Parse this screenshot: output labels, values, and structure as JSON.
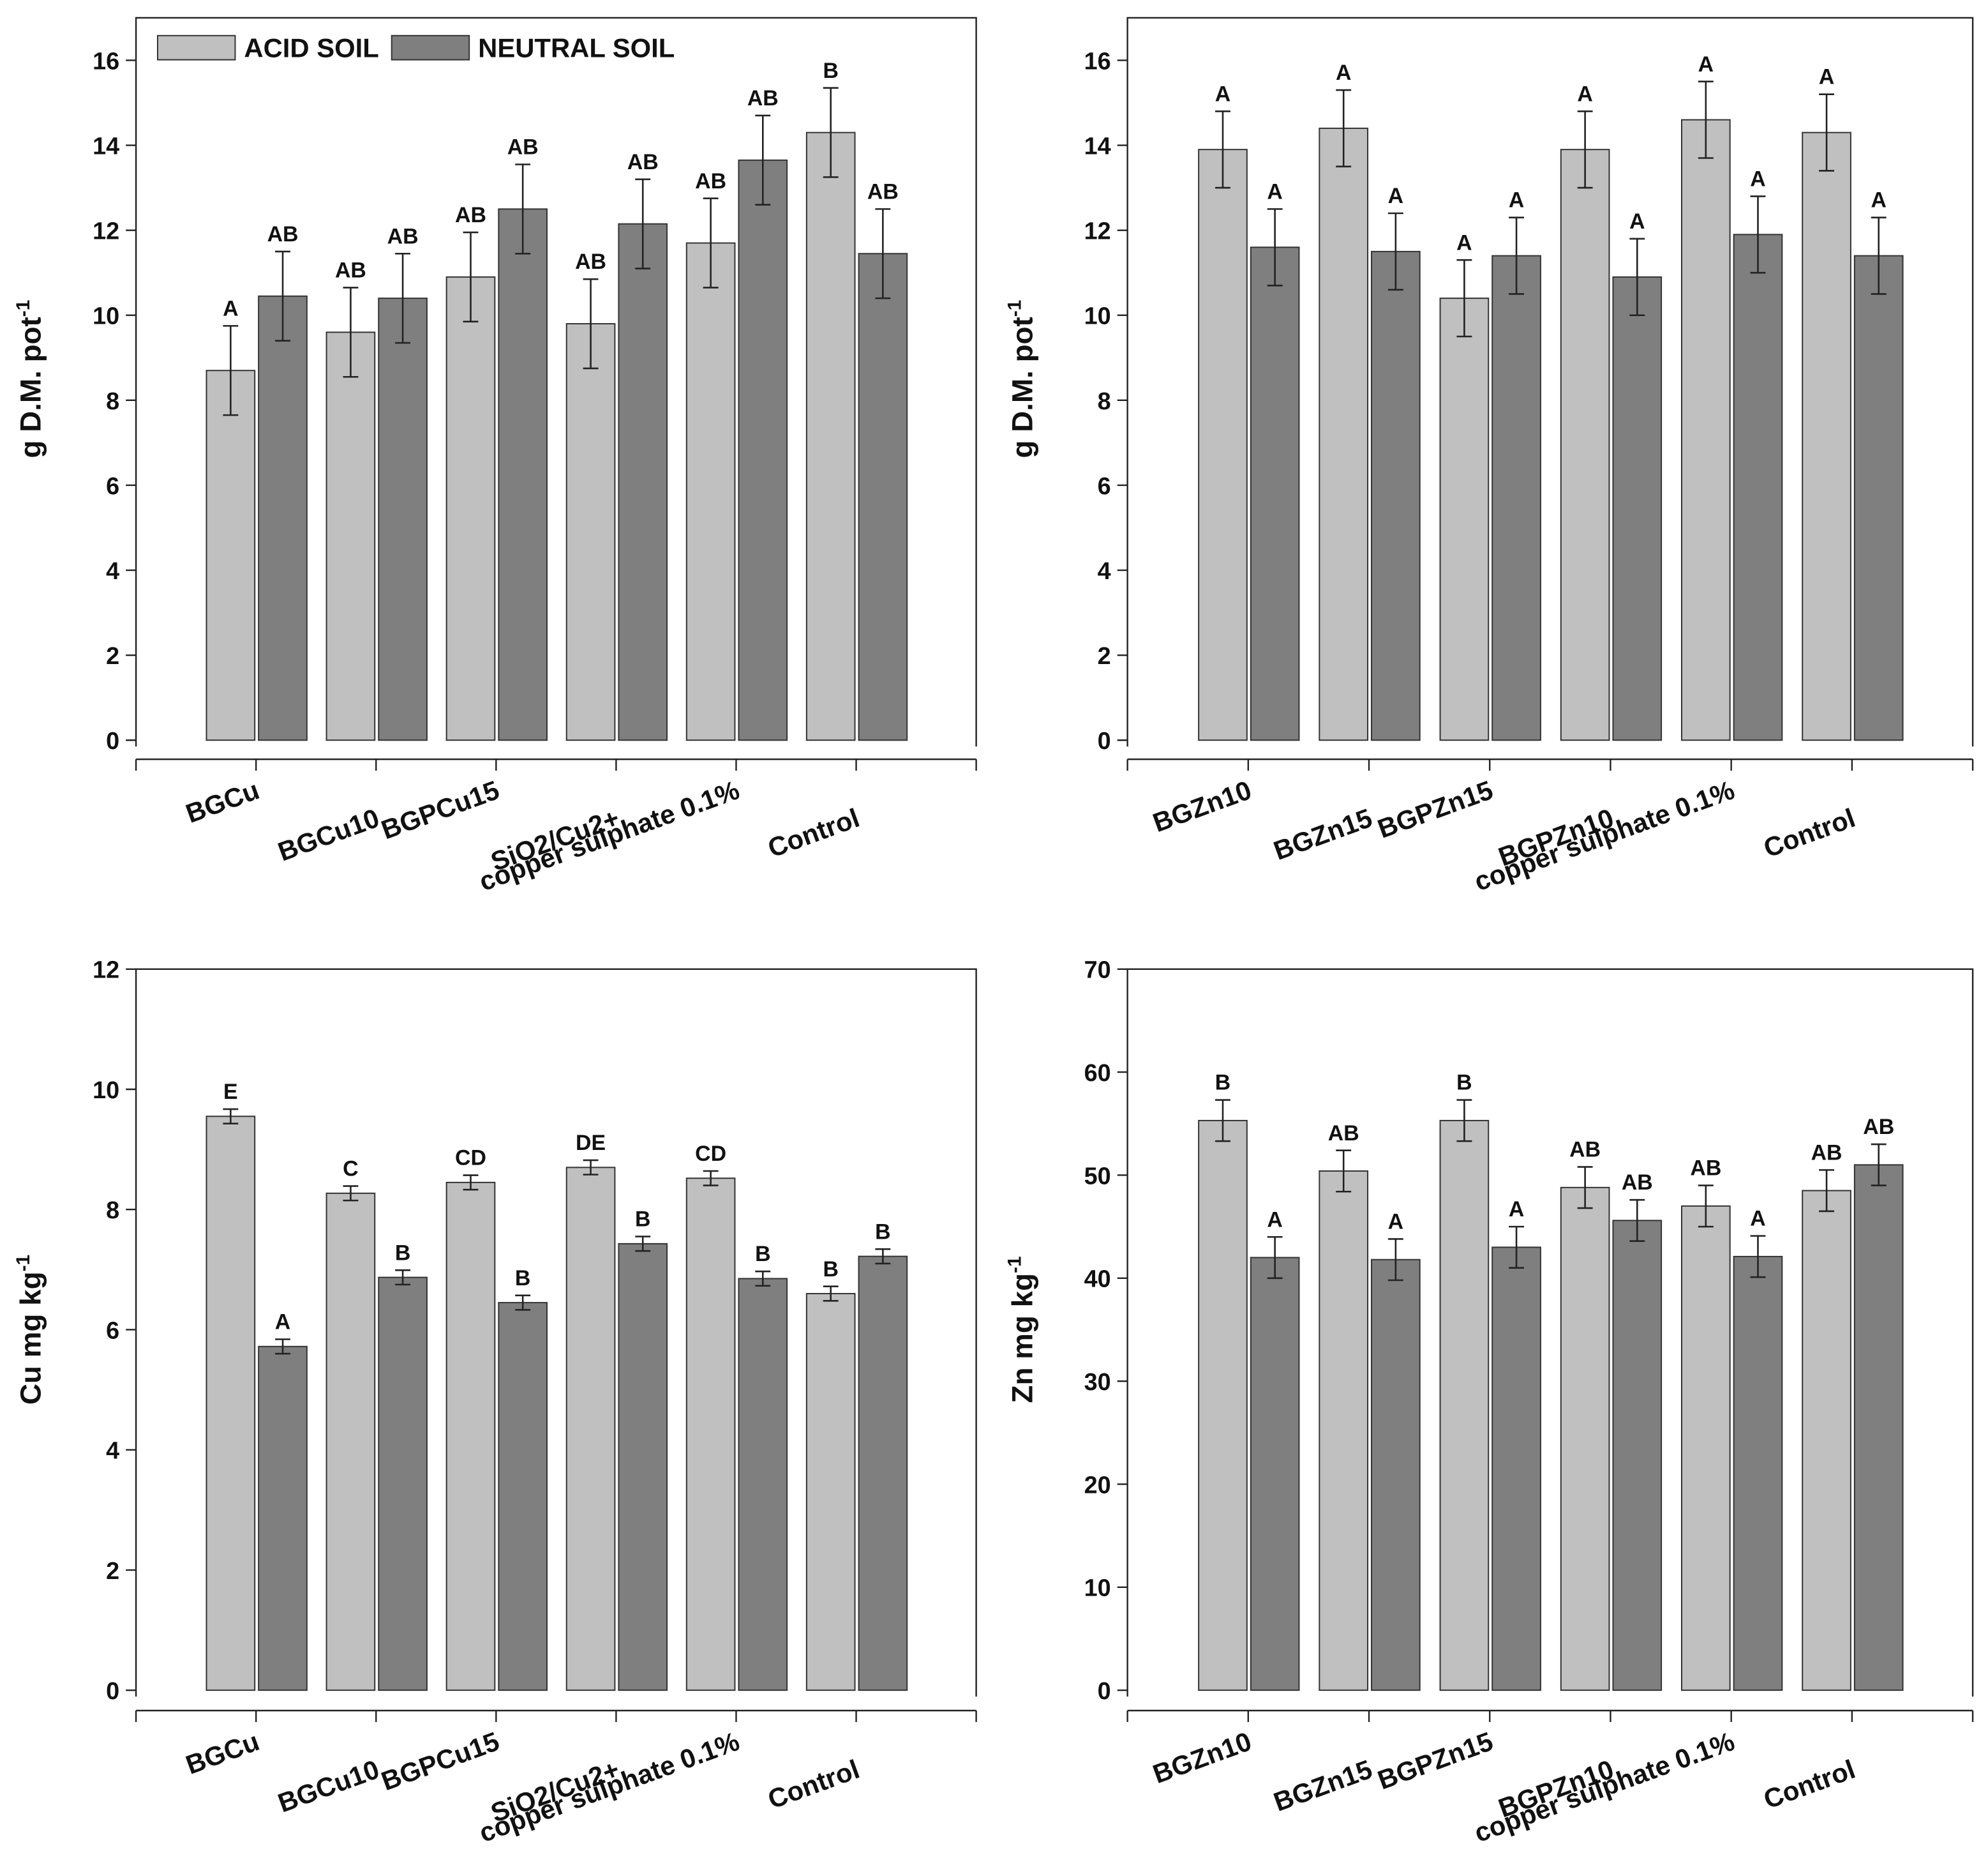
{
  "chart_data": [
    {
      "type": "bar",
      "ylabel": "g D.M. pot",
      "ylabel_sup": "-1",
      "legend": "upper left",
      "categories": [
        "BGCu",
        "BGCu10",
        "BGPCu15",
        "SiO2/Cu2+",
        "copper sulphate 0.1%",
        "Control"
      ],
      "series": [
        {
          "name": "ACID SOIL",
          "color": "#c0c0c0",
          "values": [
            8.7,
            9.6,
            10.9,
            9.8,
            11.7,
            14.3
          ],
          "errors": [
            1.05,
            1.05,
            1.05,
            1.05,
            1.05,
            1.05
          ],
          "labels": [
            "A",
            "AB",
            "AB",
            "AB",
            "AB",
            "B"
          ]
        },
        {
          "name": "NEUTRAL SOIL",
          "color": "#7f7f7f",
          "values": [
            10.45,
            10.4,
            12.5,
            12.15,
            13.65,
            11.45
          ],
          "errors": [
            1.05,
            1.05,
            1.05,
            1.05,
            1.05,
            1.05
          ],
          "labels": [
            "AB",
            "AB",
            "AB",
            "AB",
            "AB",
            "AB"
          ]
        }
      ],
      "ylim": [
        0,
        17
      ],
      "yticks": [
        0,
        2,
        4,
        6,
        8,
        10,
        12,
        14,
        16
      ]
    },
    {
      "type": "bar",
      "ylabel": "g D.M. pot",
      "ylabel_sup": "-1",
      "categories": [
        "BGZn10",
        "BGZn15",
        "BGPZn15",
        "BGPZn10",
        "copper sulphate 0.1%",
        "Control"
      ],
      "series": [
        {
          "color": "#c0c0c0",
          "values": [
            13.9,
            14.4,
            10.4,
            13.9,
            14.6,
            14.3
          ],
          "errors": [
            0.9,
            0.9,
            0.9,
            0.9,
            0.9,
            0.9
          ],
          "labels": [
            "A",
            "A",
            "A",
            "A",
            "A",
            "A"
          ]
        },
        {
          "color": "#7f7f7f",
          "values": [
            11.6,
            11.5,
            11.4,
            10.9,
            11.9,
            11.4
          ],
          "errors": [
            0.9,
            0.9,
            0.9,
            0.9,
            0.9,
            0.9
          ],
          "labels": [
            "A",
            "A",
            "A",
            "A",
            "A",
            "A"
          ]
        }
      ],
      "ylim": [
        0,
        17
      ],
      "yticks": [
        0,
        2,
        4,
        6,
        8,
        10,
        12,
        14,
        16
      ]
    },
    {
      "type": "bar",
      "ylabel": "Cu mg kg",
      "ylabel_sup": "-1",
      "categories": [
        "BGCu",
        "BGCu10",
        "BGPCu15",
        "SiO2/Cu2+",
        "copper sulphate 0.1%",
        "Control"
      ],
      "series": [
        {
          "color": "#c0c0c0",
          "values": [
            9.55,
            8.27,
            8.45,
            8.7,
            8.52,
            6.6
          ],
          "errors": [
            0.12,
            0.12,
            0.12,
            0.12,
            0.12,
            0.12
          ],
          "labels": [
            "E",
            "C",
            "CD",
            "DE",
            "CD",
            "B"
          ]
        },
        {
          "color": "#7f7f7f",
          "values": [
            5.72,
            6.87,
            6.45,
            7.43,
            6.85,
            7.22
          ],
          "errors": [
            0.12,
            0.12,
            0.12,
            0.12,
            0.12,
            0.12
          ],
          "labels": [
            "A",
            "B",
            "B",
            "B",
            "B",
            "B"
          ]
        }
      ],
      "ylim": [
        0,
        12
      ],
      "yticks": [
        0,
        2,
        4,
        6,
        8,
        10,
        12
      ]
    },
    {
      "type": "bar",
      "ylabel": "Zn mg kg",
      "ylabel_sup": "-1",
      "categories": [
        "BGZn10",
        "BGZn15",
        "BGPZn15",
        "BGPZn10",
        "copper sulphate 0.1%",
        "Control"
      ],
      "series": [
        {
          "color": "#c0c0c0",
          "values": [
            55.3,
            50.4,
            55.3,
            48.8,
            47.0,
            48.5
          ],
          "errors": [
            2,
            2,
            2,
            2,
            2,
            2
          ],
          "labels": [
            "B",
            "AB",
            "B",
            "AB",
            "AB",
            "AB"
          ]
        },
        {
          "color": "#7f7f7f",
          "values": [
            42.0,
            41.8,
            43.0,
            45.6,
            42.1,
            51.0
          ],
          "errors": [
            2,
            2,
            2,
            2,
            2,
            2
          ],
          "labels": [
            "A",
            "A",
            "A",
            "AB",
            "A",
            "AB"
          ]
        }
      ],
      "ylim": [
        0,
        70
      ],
      "yticks": [
        0,
        10,
        20,
        30,
        40,
        50,
        60,
        70
      ]
    }
  ]
}
